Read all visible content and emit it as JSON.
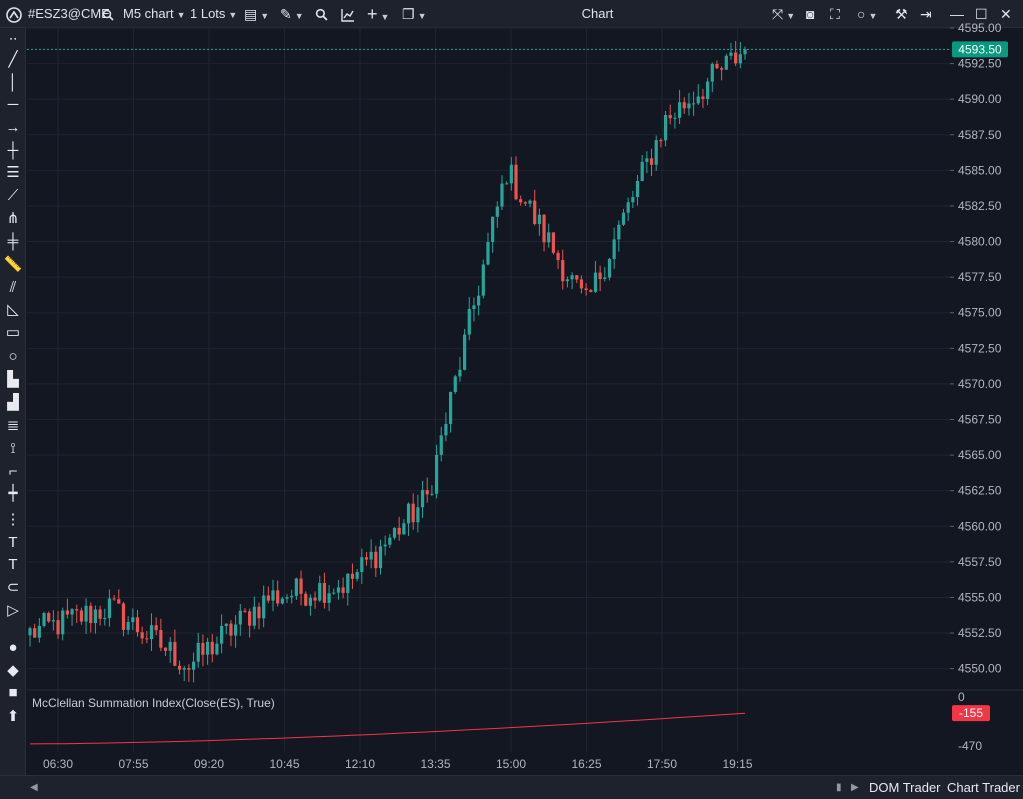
{
  "toolbar": {
    "symbol": "#ESZ3@CME",
    "timeframe": "M5 chart",
    "lots": "1 Lots",
    "window_title": "Chart"
  },
  "left_tools": [
    "pen-icon",
    "trend-line-icon",
    "vertical-line-icon",
    "horizontal-line-icon",
    "arrow-icon",
    "crosshair-icon",
    "fib-levels-icon",
    "polyline-icon",
    "pitchfork-icon",
    "gann-icon",
    "ruler-icon",
    "channel-icon",
    "triangle-icon",
    "rectangle-icon",
    "circle-icon",
    "volume-profile-icon",
    "bars-icon",
    "levels-icon",
    "zigzag-icon",
    "step-icon",
    "ticks-icon",
    "more-icon",
    "text-fill-icon",
    "text-icon",
    "price-label-icon",
    "tag-icon",
    "dot-icon",
    "diamond-icon",
    "square-icon",
    "arrow-up-icon"
  ],
  "colors": {
    "background": "#131722",
    "bull": "#26a69a",
    "bear": "#ef5350",
    "current_price": "#089981",
    "indicator": "#f23645"
  },
  "price_axis": {
    "labels": [
      "4595.00",
      "4592.50",
      "4590.00",
      "4587.50",
      "4585.00",
      "4582.50",
      "4580.00",
      "4577.50",
      "4575.00",
      "4572.50",
      "4570.00",
      "4567.50",
      "4565.00",
      "4562.50",
      "4560.00",
      "4557.50",
      "4555.00",
      "4552.50",
      "4550.00"
    ],
    "current_price": "4593.50"
  },
  "indicator": {
    "label": "McClellan Summation Index(Close(ES), True)",
    "axis_labels": [
      "0",
      "-470"
    ],
    "current_value": "-155"
  },
  "time_axis": [
    "06:30",
    "07:55",
    "09:20",
    "10:45",
    "12:10",
    "13:35",
    "15:00",
    "16:25",
    "17:50",
    "19:15"
  ],
  "bottom_tabs": {
    "dom": "DOM Trader",
    "chart_trader": "Chart Trader"
  },
  "chart_data": {
    "type": "candlestick",
    "ylim": [
      4548.5,
      4595.0
    ],
    "x": [
      "06:30",
      "07:55",
      "09:20",
      "10:45",
      "12:10",
      "13:35",
      "15:00",
      "16:25",
      "17:50",
      "19:15"
    ],
    "close_anchors": [
      4552.5,
      4554.3,
      4550.2,
      4555.0,
      4556.0,
      4562.0,
      4585.0,
      4575.5,
      4588.5,
      4593.5
    ],
    "indicator_ylim": [
      -470,
      0
    ],
    "indicator_start": -450,
    "indicator_end": -155
  }
}
